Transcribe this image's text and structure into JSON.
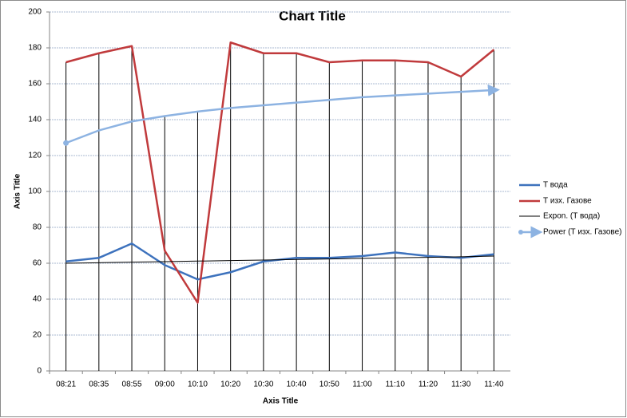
{
  "chart_data": {
    "type": "line",
    "title": "Chart Title",
    "x_label": "Axis Title",
    "y_label": "Axis Title",
    "categories": [
      "08:21",
      "08:35",
      "08:55",
      "09:00",
      "10:10",
      "10:20",
      "10:30",
      "10:40",
      "10:50",
      "11:00",
      "11:10",
      "11:20",
      "11:30",
      "11:40"
    ],
    "series": [
      {
        "name": "T вода",
        "color": "#3d72bd",
        "width": 2.5,
        "values": [
          61,
          63,
          71,
          59,
          51,
          55,
          61,
          63,
          63,
          64,
          66,
          64,
          63,
          65
        ]
      },
      {
        "name": "Т изх. Газове",
        "color": "#c03a3c",
        "width": 2.5,
        "values": [
          172,
          177,
          181,
          67,
          38,
          183,
          177,
          177,
          172,
          173,
          173,
          172,
          164,
          179
        ]
      },
      {
        "name": "Expon. (T вода)",
        "color": "#000000",
        "width": 1,
        "values": [
          60.0,
          60.3,
          60.6,
          60.9,
          61.2,
          61.5,
          61.8,
          62.1,
          62.4,
          62.7,
          63.0,
          63.3,
          63.6,
          64.0
        ]
      },
      {
        "name": "Power (Т изх. Газове)",
        "color": "#8db3e2",
        "width": 2.5,
        "arrow": true,
        "values": [
          127,
          134,
          139,
          142,
          144.5,
          146.5,
          148,
          149.5,
          151,
          152.5,
          153.5,
          154.5,
          155.5,
          156.5
        ]
      }
    ],
    "ylim": [
      0,
      200
    ],
    "yticks": [
      0,
      20,
      40,
      60,
      80,
      100,
      120,
      140,
      160,
      180,
      200
    ],
    "grid": true,
    "drop_lines": true,
    "legend": "right"
  }
}
